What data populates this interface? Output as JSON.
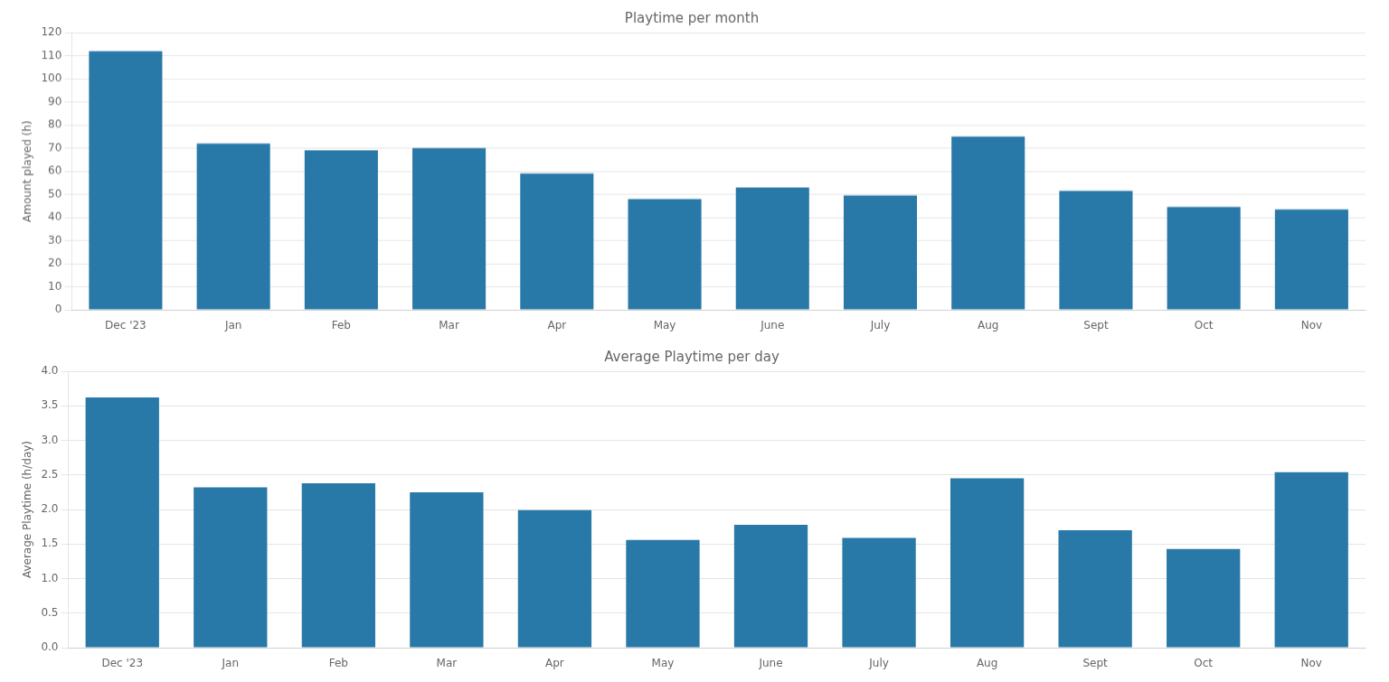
{
  "chart_data": [
    {
      "type": "bar",
      "title": "Playtime per month",
      "ylabel": "Amount played (h)",
      "categories": [
        "Dec '23",
        "Jan",
        "Feb",
        "Mar",
        "Apr",
        "May",
        "June",
        "July",
        "Aug",
        "Sept",
        "Oct",
        "Nov"
      ],
      "values": [
        112,
        72,
        69,
        70,
        59,
        48,
        53,
        49.5,
        75,
        51.5,
        44.5,
        43.5
      ],
      "color": "#2878a8",
      "ylim": [
        0,
        120
      ],
      "yticks": [
        0,
        10,
        20,
        30,
        40,
        50,
        60,
        70,
        80,
        90,
        100,
        110,
        120
      ],
      "grid": true
    },
    {
      "type": "bar",
      "title": "Average Playtime per day",
      "ylabel": "Average Playtime (h/day)",
      "categories": [
        "Dec '23",
        "Jan",
        "Feb",
        "Mar",
        "Apr",
        "May",
        "June",
        "July",
        "Aug",
        "Sept",
        "Oct",
        "Nov"
      ],
      "values": [
        3.62,
        2.32,
        2.38,
        2.25,
        1.99,
        1.56,
        1.78,
        1.59,
        2.45,
        1.7,
        1.43,
        2.54
      ],
      "color": "#2878a8",
      "ylim": [
        0.0,
        4.0
      ],
      "yticks": [
        {
          "value": 0,
          "label": "0.0"
        },
        0.5,
        {
          "value": 1,
          "label": "1.0"
        },
        1.5,
        {
          "value": 2,
          "label": "2.0"
        },
        2.5,
        {
          "value": 3,
          "label": "3.0"
        },
        3.5,
        {
          "value": 4,
          "label": "4.0"
        }
      ],
      "grid": true
    }
  ]
}
